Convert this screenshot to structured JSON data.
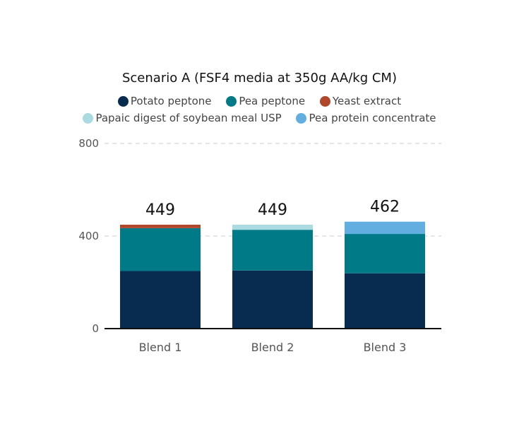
{
  "chart_data": {
    "type": "bar",
    "stacked": true,
    "title": "Scenario A (FSF4 media at 350g AA/kg CM)",
    "categories": [
      "Blend 1",
      "Blend 2",
      "Blend 3"
    ],
    "series": [
      {
        "name": "Potato peptone",
        "color": "#072c4f",
        "values": [
          249,
          251,
          239
        ]
      },
      {
        "name": "Pea peptone",
        "color": "#007a87",
        "values": [
          185,
          176,
          170
        ]
      },
      {
        "name": "Yeast extract",
        "color": "#b0472a",
        "values": [
          15,
          0,
          0
        ]
      },
      {
        "name": "Papaic digest of soybean meal USP",
        "color": "#a9dbe0",
        "values": [
          0,
          22,
          0
        ]
      },
      {
        "name": "Pea protein concentrate",
        "color": "#62aee0",
        "values": [
          0,
          0,
          53
        ]
      }
    ],
    "totals": [
      "449",
      "449",
      "462"
    ],
    "ylim": [
      0,
      800
    ],
    "yticks": [
      "0",
      "400",
      "800"
    ],
    "xlabel": "",
    "ylabel": "",
    "grid": "horizontal dashed",
    "legend": "top"
  }
}
